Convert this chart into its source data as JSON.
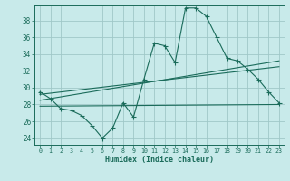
{
  "xlabel": "Humidex (Indice chaleur)",
  "x_ticks": [
    0,
    1,
    2,
    3,
    4,
    5,
    6,
    7,
    8,
    9,
    10,
    11,
    12,
    13,
    14,
    15,
    16,
    17,
    18,
    19,
    20,
    21,
    22,
    23
  ],
  "y_ticks": [
    24,
    26,
    28,
    30,
    32,
    34,
    36,
    38
  ],
  "ylim": [
    23.2,
    39.8
  ],
  "xlim": [
    -0.5,
    23.5
  ],
  "bg_color": "#c8eaea",
  "grid_color": "#a0c8c8",
  "line_color": "#1a6b5a",
  "line1": [
    29.5,
    28.7,
    27.5,
    27.3,
    26.7,
    25.5,
    24.0,
    25.2,
    28.2,
    26.5,
    31.0,
    35.3,
    35.0,
    33.0,
    39.5,
    39.5,
    38.5,
    36.0,
    33.5,
    33.2,
    32.2,
    31.0,
    29.5,
    28.2
  ],
  "line2_x": [
    0,
    23
  ],
  "line2_y": [
    29.2,
    32.5
  ],
  "line3_x": [
    0,
    23
  ],
  "line3_y": [
    27.8,
    28.0
  ],
  "line4_x": [
    0,
    23
  ],
  "line4_y": [
    28.5,
    33.2
  ]
}
